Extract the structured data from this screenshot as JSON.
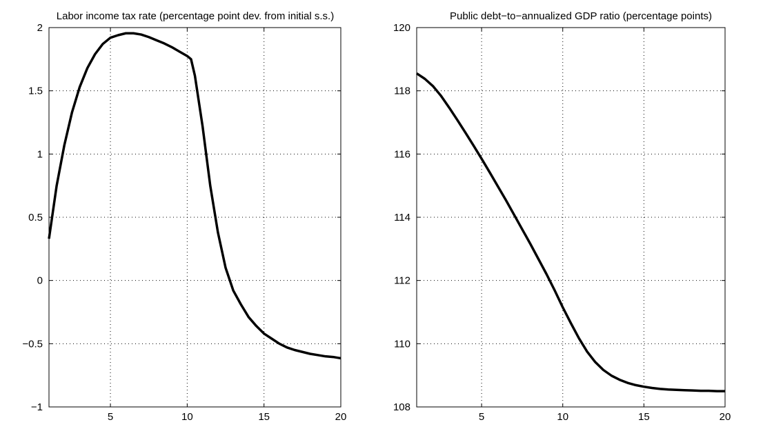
{
  "chart_data": [
    {
      "type": "line",
      "title": "Labor income tax rate (percentage point dev. from initial s.s.)",
      "xlabel": "",
      "ylabel": "",
      "xlim": [
        1,
        20
      ],
      "ylim": [
        -1,
        2
      ],
      "grid": true,
      "x_ticks": [
        5,
        10,
        15,
        20
      ],
      "x_tick_labels": [
        "5",
        "10",
        "15",
        "20"
      ],
      "y_ticks": [
        -1,
        -0.5,
        0,
        0.5,
        1,
        1.5,
        2
      ],
      "y_tick_labels": [
        "−1",
        "−0.5",
        "0",
        "0.5",
        "1",
        "1.5",
        "2"
      ],
      "line_color": "#000000",
      "series": [
        {
          "x": [
            1,
            1.5,
            2,
            2.5,
            3,
            3.5,
            4,
            4.5,
            5,
            5.5,
            6,
            6.5,
            7,
            7.5,
            8,
            8.5,
            9,
            9.5,
            10,
            10.25,
            10.5,
            11,
            11.5,
            12,
            12.5,
            13,
            13.5,
            14,
            14.5,
            15,
            15.5,
            16,
            16.5,
            17,
            17.5,
            18,
            18.5,
            19,
            19.5,
            20
          ],
          "y": [
            0.33,
            0.75,
            1.07,
            1.33,
            1.53,
            1.68,
            1.79,
            1.87,
            1.92,
            1.94,
            1.955,
            1.955,
            1.945,
            1.925,
            1.9,
            1.875,
            1.845,
            1.81,
            1.775,
            1.75,
            1.62,
            1.22,
            0.75,
            0.38,
            0.1,
            -0.08,
            -0.19,
            -0.29,
            -0.36,
            -0.42,
            -0.46,
            -0.5,
            -0.53,
            -0.55,
            -0.565,
            -0.58,
            -0.59,
            -0.6,
            -0.605,
            -0.615
          ]
        }
      ]
    },
    {
      "type": "line",
      "title": "Public debt−to−annualized GDP ratio (percentage points)",
      "xlabel": "",
      "ylabel": "",
      "xlim": [
        1,
        20
      ],
      "ylim": [
        108,
        120
      ],
      "grid": true,
      "x_ticks": [
        5,
        10,
        15,
        20
      ],
      "x_tick_labels": [
        "5",
        "10",
        "15",
        "20"
      ],
      "y_ticks": [
        108,
        110,
        112,
        114,
        116,
        118,
        120
      ],
      "y_tick_labels": [
        "108",
        "110",
        "112",
        "114",
        "116",
        "118",
        "120"
      ],
      "line_color": "#000000",
      "series": [
        {
          "x": [
            1,
            1.5,
            2,
            2.5,
            3,
            3.5,
            4,
            4.5,
            5,
            5.5,
            6,
            6.5,
            7,
            7.5,
            8,
            8.5,
            9,
            9.5,
            10,
            10.5,
            11,
            11.5,
            12,
            12.5,
            13,
            13.5,
            14,
            14.5,
            15,
            15.5,
            16,
            16.5,
            17,
            17.5,
            18,
            18.5,
            19,
            19.5,
            20
          ],
          "y": [
            118.55,
            118.38,
            118.15,
            117.84,
            117.47,
            117.08,
            116.68,
            116.27,
            115.85,
            115.42,
            114.98,
            114.54,
            114.08,
            113.62,
            113.16,
            112.68,
            112.2,
            111.69,
            111.15,
            110.65,
            110.17,
            109.75,
            109.42,
            109.17,
            108.99,
            108.86,
            108.76,
            108.69,
            108.64,
            108.6,
            108.57,
            108.55,
            108.54,
            108.53,
            108.52,
            108.51,
            108.51,
            108.5,
            108.5
          ]
        }
      ]
    }
  ]
}
